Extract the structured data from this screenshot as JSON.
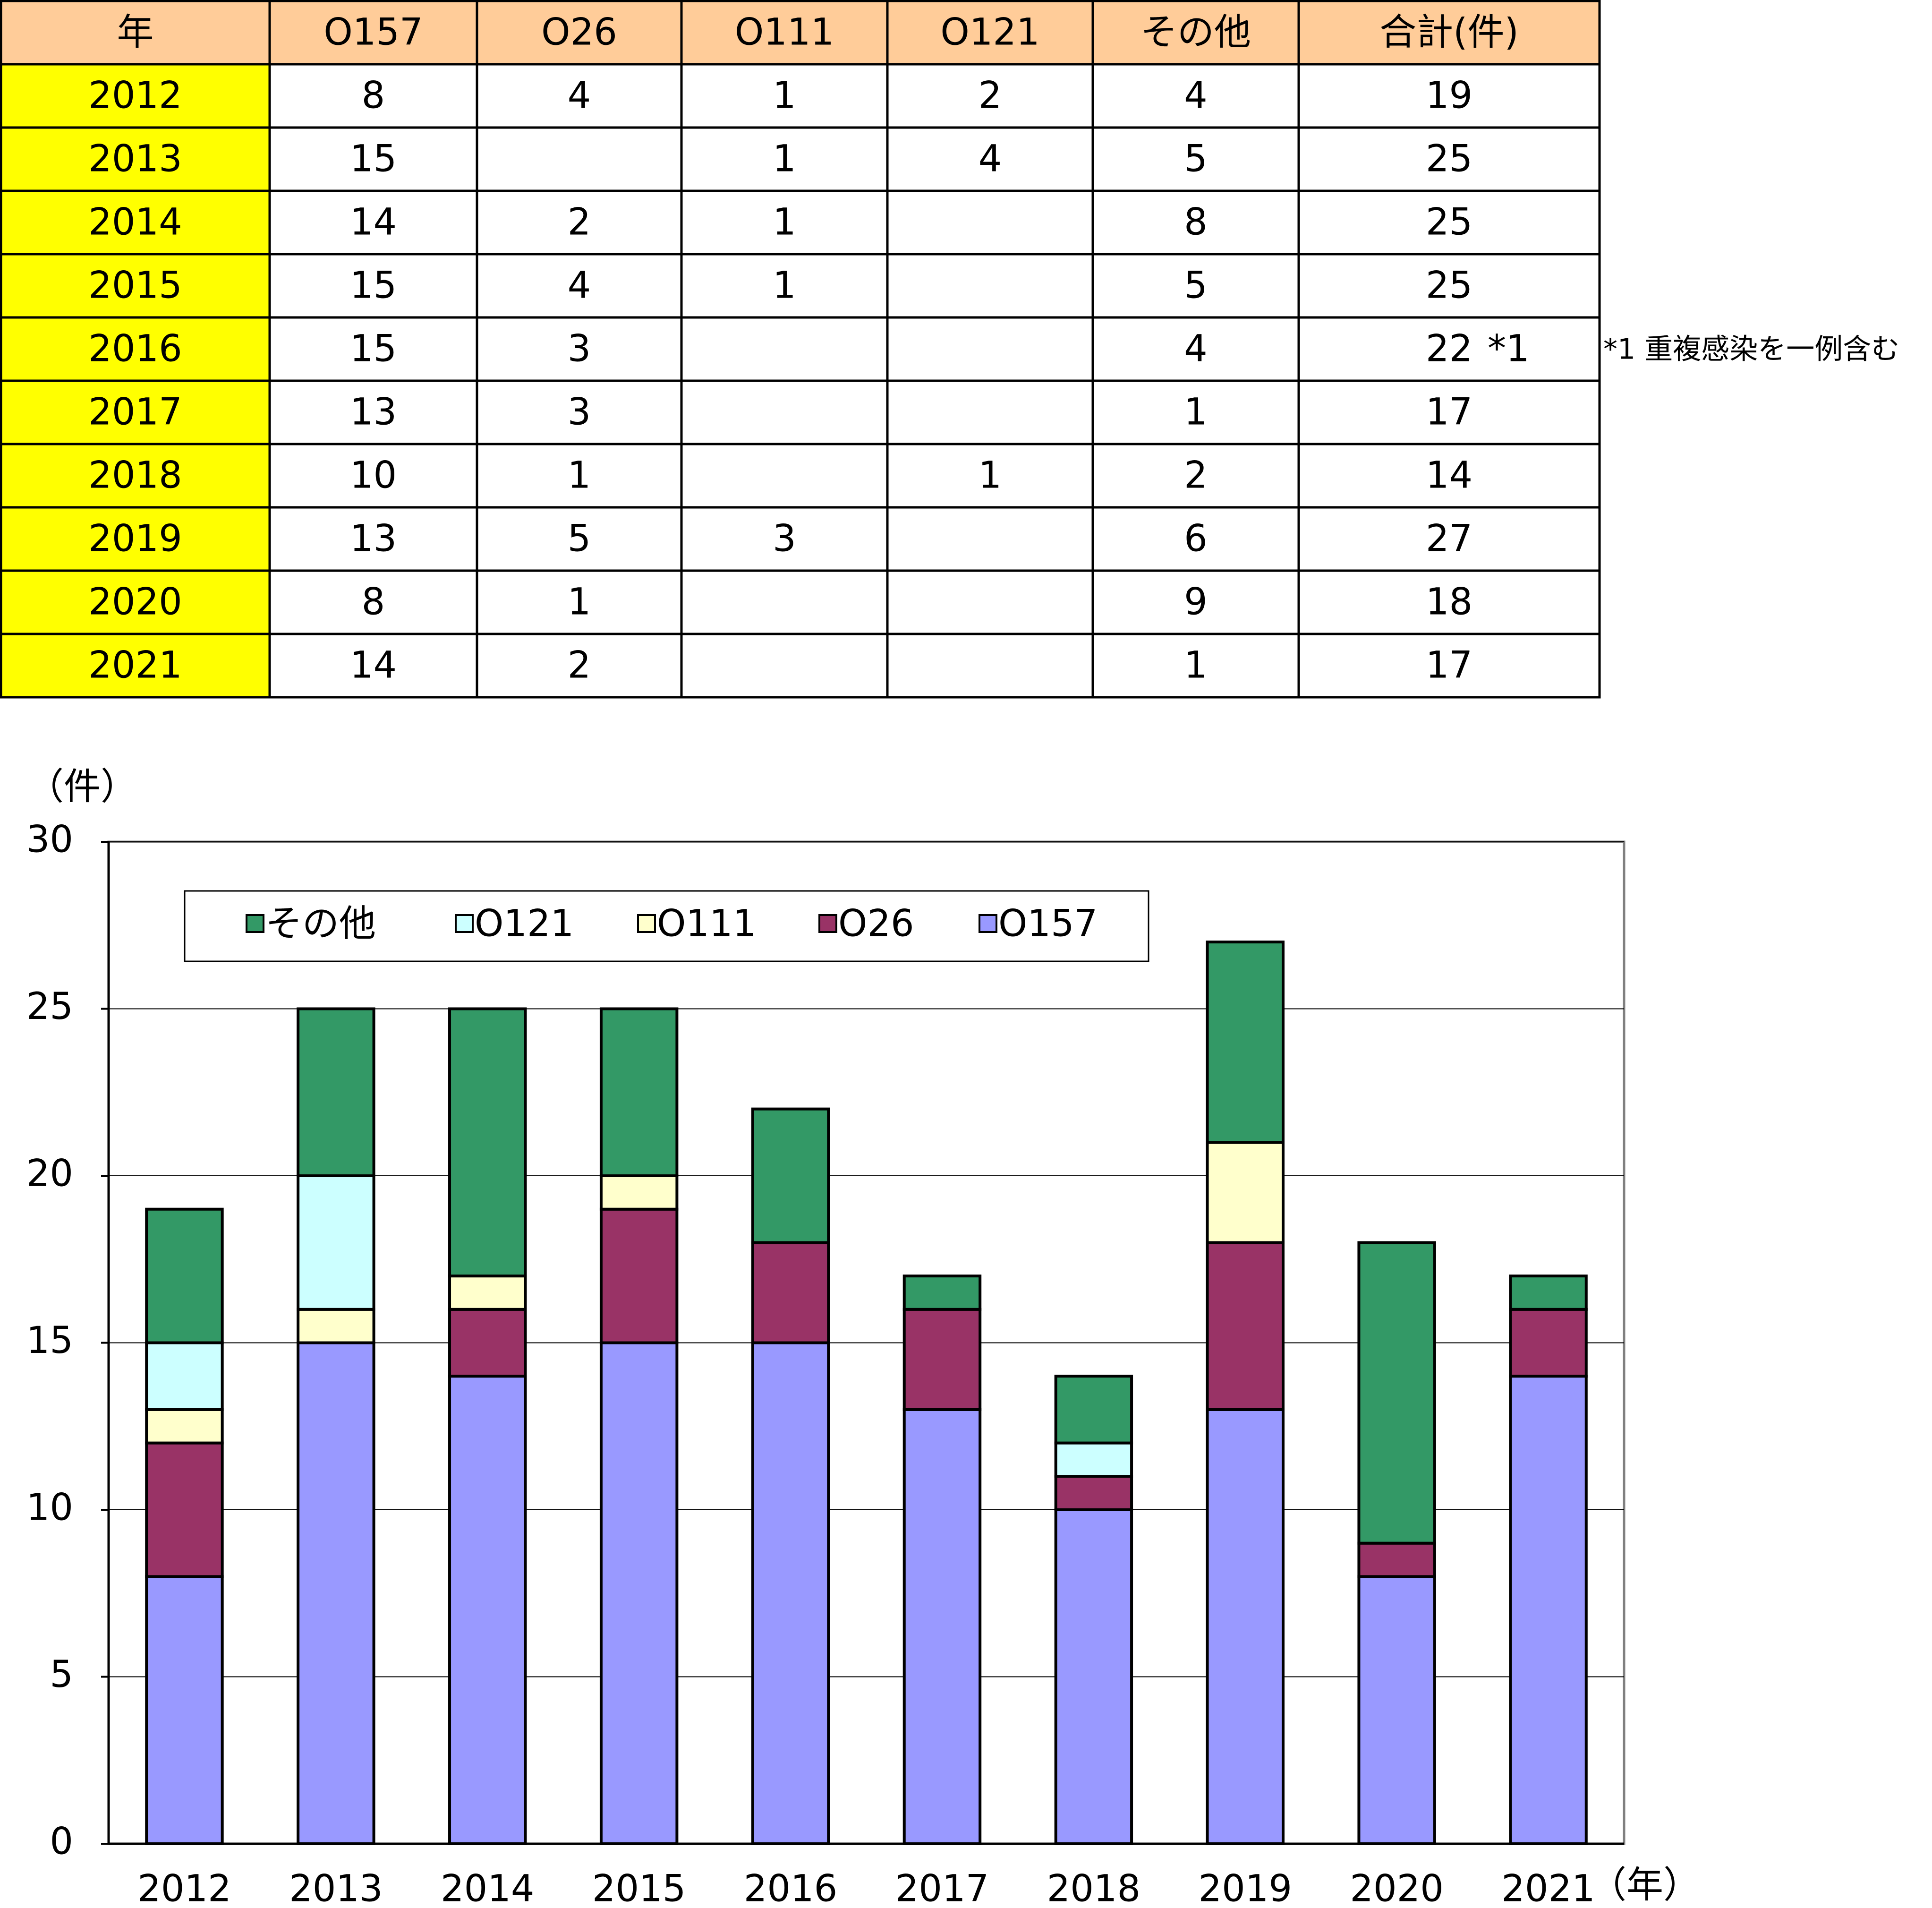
{
  "table": {
    "header": [
      "年",
      "O157",
      "O26",
      "O111",
      "O121",
      "その他",
      "合計(件)"
    ],
    "rows": [
      [
        2012,
        8,
        4,
        1,
        2,
        4,
        19
      ],
      [
        2013,
        15,
        null,
        1,
        4,
        5,
        25
      ],
      [
        2014,
        14,
        2,
        1,
        null,
        8,
        25
      ],
      [
        2015,
        15,
        4,
        1,
        null,
        5,
        25
      ],
      [
        2016,
        15,
        3,
        null,
        null,
        4,
        22
      ],
      [
        2017,
        13,
        3,
        null,
        null,
        1,
        17
      ],
      [
        2018,
        10,
        1,
        null,
        1,
        2,
        14
      ],
      [
        2019,
        13,
        5,
        3,
        null,
        6,
        27
      ],
      [
        2020,
        8,
        1,
        null,
        null,
        9,
        18
      ],
      [
        2021,
        14,
        2,
        null,
        null,
        1,
        17
      ]
    ],
    "cell_mark": "*1",
    "note": "*1 重複感染を一例含む"
  },
  "chart_data": {
    "type": "stacked_bar",
    "y_label": "（件）",
    "x_label": "（年）",
    "categories": [
      "2012",
      "2013",
      "2014",
      "2015",
      "2016",
      "2017",
      "2018",
      "2019",
      "2020",
      "2021"
    ],
    "series": [
      {
        "name": "O157",
        "color": "#9999ff",
        "values": [
          8,
          15,
          14,
          15,
          15,
          13,
          10,
          13,
          8,
          14
        ]
      },
      {
        "name": "O26",
        "color": "#993366",
        "values": [
          4,
          null,
          2,
          4,
          3,
          3,
          1,
          5,
          1,
          2
        ]
      },
      {
        "name": "O111",
        "color": "#ffffcc",
        "values": [
          1,
          1,
          1,
          1,
          null,
          null,
          null,
          3,
          null,
          null
        ]
      },
      {
        "name": "O121",
        "color": "#ccffff",
        "values": [
          2,
          4,
          null,
          null,
          null,
          null,
          1,
          null,
          null,
          null
        ]
      },
      {
        "name": "その他",
        "color": "#339966",
        "values": [
          4,
          5,
          8,
          5,
          4,
          1,
          2,
          6,
          9,
          1
        ]
      }
    ],
    "ylim": [
      0,
      30
    ],
    "yticks": [
      0,
      5,
      10,
      15,
      20,
      25,
      30
    ],
    "grid": true
  }
}
